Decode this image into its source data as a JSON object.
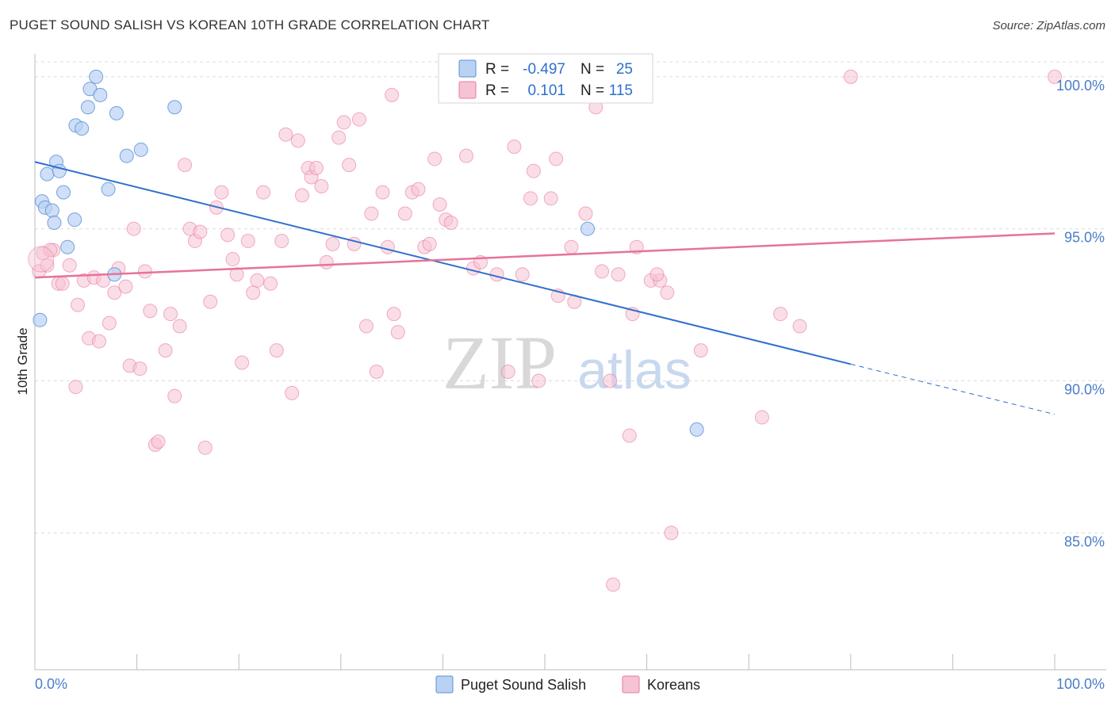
{
  "title": "PUGET SOUND SALISH VS KOREAN 10TH GRADE CORRELATION CHART",
  "source": "Source: ZipAtlas.com",
  "watermark": {
    "zip": "ZIP",
    "atlas": "atlas"
  },
  "colors": {
    "blue": "#5a8fd6",
    "blue_fill": "#b9d1f3",
    "pink": "#e87aa0",
    "pink_fill": "#f6c3d3",
    "blue_line": "#2f6fce",
    "pink_line": "#e5739a",
    "tick_text": "#4a7cc7"
  },
  "legend_box": {
    "rows": [
      {
        "r_label": "R =",
        "r_value": "-0.497",
        "n_label": "N =",
        "n_value": "25"
      },
      {
        "r_label": "R =",
        "r_value": "0.101",
        "n_label": "N =",
        "n_value": "115"
      }
    ]
  },
  "bottom_legend": [
    "Puget Sound Salish",
    "Koreans"
  ],
  "chart_data": {
    "type": "scatter",
    "title": "PUGET SOUND SALISH VS KOREAN 10TH GRADE CORRELATION CHART",
    "xlabel": "",
    "ylabel": "10th Grade",
    "xlim": [
      0,
      100
    ],
    "ylim": [
      80.5,
      100.7
    ],
    "x_tick_labels": [
      "0.0%",
      "100.0%"
    ],
    "y_ticks": [
      85,
      90,
      95,
      100
    ],
    "y_tick_labels": [
      "85.0%",
      "90.0%",
      "95.0%",
      "100.0%"
    ],
    "series": [
      {
        "name": "Puget Sound Salish",
        "r": -0.497,
        "n": 25,
        "trend": {
          "x0": 0,
          "y0": 97.2,
          "x1": 80,
          "y1": 90.55,
          "dash_to_x": 100,
          "dash_to_y": 88.9
        },
        "points": [
          [
            0.5,
            92.0
          ],
          [
            0.7,
            95.9
          ],
          [
            1.0,
            95.7
          ],
          [
            1.2,
            96.8
          ],
          [
            1.7,
            95.6
          ],
          [
            1.9,
            95.2
          ],
          [
            2.1,
            97.2
          ],
          [
            2.4,
            96.9
          ],
          [
            2.8,
            96.2
          ],
          [
            3.2,
            94.4
          ],
          [
            3.9,
            95.3
          ],
          [
            4.0,
            98.4
          ],
          [
            4.6,
            98.3
          ],
          [
            5.2,
            99.0
          ],
          [
            5.4,
            99.6
          ],
          [
            6.0,
            100.0
          ],
          [
            6.4,
            99.4
          ],
          [
            7.2,
            96.3
          ],
          [
            7.8,
            93.5
          ],
          [
            8.0,
            98.8
          ],
          [
            9.0,
            97.4
          ],
          [
            10.4,
            97.6
          ],
          [
            13.7,
            99.0
          ],
          [
            54.2,
            95.0
          ],
          [
            64.9,
            88.4
          ]
        ]
      },
      {
        "name": "Koreans",
        "r": 0.101,
        "n": 115,
        "trend": {
          "x0": 0,
          "y0": 93.4,
          "x1": 100,
          "y1": 94.85
        },
        "points": [
          [
            0.4,
            93.6
          ],
          [
            0.8,
            94.2
          ],
          [
            1.2,
            93.8
          ],
          [
            1.8,
            94.3
          ],
          [
            2.3,
            93.2
          ],
          [
            2.7,
            93.2
          ],
          [
            3.4,
            93.8
          ],
          [
            4.0,
            89.8
          ],
          [
            4.2,
            92.5
          ],
          [
            4.8,
            93.3
          ],
          [
            5.3,
            91.4
          ],
          [
            5.8,
            93.4
          ],
          [
            6.3,
            91.3
          ],
          [
            6.7,
            93.3
          ],
          [
            7.3,
            91.9
          ],
          [
            7.8,
            92.9
          ],
          [
            8.2,
            93.7
          ],
          [
            8.9,
            93.1
          ],
          [
            9.3,
            90.5
          ],
          [
            9.7,
            95.0
          ],
          [
            10.3,
            90.4
          ],
          [
            10.8,
            93.6
          ],
          [
            11.3,
            92.3
          ],
          [
            11.8,
            87.9
          ],
          [
            12.1,
            88.0
          ],
          [
            12.8,
            91.0
          ],
          [
            13.3,
            92.2
          ],
          [
            13.7,
            89.5
          ],
          [
            14.2,
            91.8
          ],
          [
            14.7,
            97.1
          ],
          [
            15.2,
            95.0
          ],
          [
            15.7,
            94.6
          ],
          [
            16.2,
            94.9
          ],
          [
            16.7,
            87.8
          ],
          [
            17.2,
            92.6
          ],
          [
            17.8,
            95.7
          ],
          [
            18.3,
            96.2
          ],
          [
            18.9,
            94.8
          ],
          [
            19.4,
            94.0
          ],
          [
            19.8,
            93.5
          ],
          [
            20.3,
            90.6
          ],
          [
            20.9,
            94.6
          ],
          [
            21.4,
            92.9
          ],
          [
            21.8,
            93.3
          ],
          [
            22.4,
            96.2
          ],
          [
            23.1,
            93.2
          ],
          [
            23.7,
            91.0
          ],
          [
            24.2,
            94.6
          ],
          [
            24.6,
            98.1
          ],
          [
            25.2,
            89.6
          ],
          [
            25.8,
            97.9
          ],
          [
            26.2,
            96.1
          ],
          [
            26.8,
            97.0
          ],
          [
            27.1,
            96.7
          ],
          [
            27.6,
            97.0
          ],
          [
            28.1,
            96.4
          ],
          [
            28.6,
            93.9
          ],
          [
            29.2,
            94.5
          ],
          [
            29.8,
            98.0
          ],
          [
            30.3,
            98.5
          ],
          [
            30.8,
            97.1
          ],
          [
            31.3,
            94.5
          ],
          [
            31.8,
            98.6
          ],
          [
            32.5,
            91.8
          ],
          [
            33.0,
            95.5
          ],
          [
            33.5,
            90.3
          ],
          [
            34.1,
            96.2
          ],
          [
            34.6,
            94.4
          ],
          [
            35.2,
            92.2
          ],
          [
            35.6,
            91.6
          ],
          [
            36.3,
            95.5
          ],
          [
            37.0,
            96.2
          ],
          [
            37.6,
            96.3
          ],
          [
            38.2,
            94.4
          ],
          [
            38.7,
            94.5
          ],
          [
            39.2,
            97.3
          ],
          [
            39.7,
            95.8
          ],
          [
            40.3,
            95.3
          ],
          [
            40.8,
            95.2
          ],
          [
            42.3,
            97.4
          ],
          [
            43.0,
            93.7
          ],
          [
            43.7,
            93.9
          ],
          [
            45.3,
            93.5
          ],
          [
            46.4,
            90.3
          ],
          [
            47.0,
            97.7
          ],
          [
            47.8,
            93.5
          ],
          [
            48.6,
            96.0
          ],
          [
            48.9,
            96.9
          ],
          [
            49.4,
            90.0
          ],
          [
            50.6,
            96.0
          ],
          [
            51.1,
            97.3
          ],
          [
            51.3,
            92.8
          ],
          [
            52.6,
            94.4
          ],
          [
            52.9,
            92.6
          ],
          [
            54.0,
            95.5
          ],
          [
            55.0,
            99.0
          ],
          [
            55.6,
            93.6
          ],
          [
            56.4,
            90.0
          ],
          [
            57.2,
            93.5
          ],
          [
            58.3,
            88.2
          ],
          [
            58.6,
            92.2
          ],
          [
            59.0,
            94.4
          ],
          [
            60.4,
            93.3
          ],
          [
            61.3,
            93.3
          ],
          [
            62.0,
            92.9
          ],
          [
            62.4,
            85.0
          ],
          [
            65.3,
            91.0
          ],
          [
            71.3,
            88.8
          ],
          [
            73.1,
            92.2
          ],
          [
            75.0,
            91.8
          ],
          [
            80.0,
            100.0
          ],
          [
            56.7,
            83.3
          ],
          [
            61.0,
            93.5
          ],
          [
            35.0,
            99.4
          ],
          [
            1.5,
            94.3
          ],
          [
            100.0,
            100.0
          ]
        ]
      }
    ]
  }
}
